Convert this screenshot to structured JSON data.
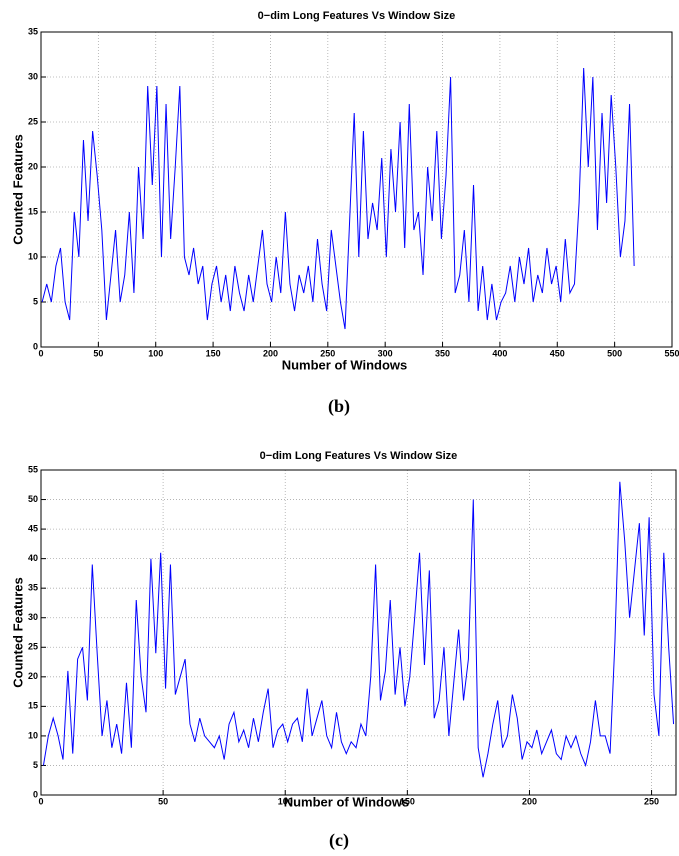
{
  "chart_data": [
    {
      "type": "line",
      "title": "0−dim Long Features Vs Window Size",
      "xlabel": "Number of Windows",
      "ylabel": "Counted Features",
      "caption": "(b)",
      "xlim": [
        0,
        550
      ],
      "ylim": [
        0,
        35
      ],
      "xticks": [
        0,
        50,
        100,
        150,
        200,
        250,
        300,
        350,
        400,
        450,
        500,
        550
      ],
      "yticks": [
        0,
        5,
        10,
        15,
        20,
        25,
        30,
        35
      ],
      "grid": true,
      "color": "#0000ff",
      "x": [
        1,
        5,
        9,
        13,
        17,
        21,
        25,
        29,
        33,
        37,
        41,
        45,
        49,
        53,
        57,
        61,
        65,
        69,
        73,
        77,
        81,
        85,
        89,
        93,
        97,
        101,
        105,
        109,
        113,
        117,
        121,
        125,
        129,
        133,
        137,
        141,
        145,
        149,
        153,
        157,
        161,
        165,
        169,
        173,
        177,
        181,
        185,
        189,
        193,
        197,
        201,
        205,
        209,
        213,
        217,
        221,
        225,
        229,
        233,
        237,
        241,
        245,
        249,
        253,
        257,
        261,
        265,
        269,
        273,
        277,
        281,
        285,
        289,
        293,
        297,
        301,
        305,
        309,
        313,
        317,
        321,
        325,
        329,
        333,
        337,
        341,
        345,
        349,
        353,
        357,
        361,
        365,
        369,
        373,
        377,
        381,
        385,
        389,
        393,
        397,
        401,
        405,
        409,
        413,
        417,
        421,
        425,
        429,
        433,
        437,
        441,
        445,
        449,
        453,
        457,
        461,
        465,
        469,
        473,
        477,
        481,
        485,
        489,
        493,
        497,
        501,
        505,
        509,
        513,
        517
      ],
      "values": [
        5,
        7,
        5,
        9,
        11,
        5,
        3,
        15,
        10,
        23,
        14,
        24,
        19,
        13,
        3,
        8,
        13,
        5,
        8,
        15,
        6,
        20,
        12,
        29,
        18,
        29,
        10,
        27,
        12,
        20,
        29,
        10,
        8,
        11,
        7,
        9,
        3,
        7,
        9,
        5,
        8,
        4,
        9,
        6,
        4,
        8,
        5,
        9,
        13,
        7,
        5,
        10,
        6,
        15,
        7,
        4,
        8,
        6,
        9,
        5,
        12,
        7,
        4,
        13,
        9,
        5,
        2,
        14,
        26,
        10,
        24,
        12,
        16,
        13,
        21,
        10,
        22,
        15,
        25,
        11,
        27,
        13,
        15,
        8,
        20,
        14,
        24,
        12,
        19,
        30,
        6,
        8,
        13,
        5,
        18,
        4,
        9,
        3,
        7,
        3,
        5,
        6,
        9,
        5,
        10,
        7,
        11,
        5,
        8,
        6,
        11,
        7,
        9,
        5,
        12,
        6,
        7,
        16,
        31,
        20,
        30,
        13,
        26,
        16,
        28,
        20,
        10,
        14,
        27,
        9
      ]
    },
    {
      "type": "line",
      "title": "0−dim Long Features Vs Window Size",
      "xlabel": "Number of Windows",
      "ylabel": "Counted Features",
      "caption": "(c)",
      "xlim": [
        0,
        260
      ],
      "ylim": [
        0,
        55
      ],
      "xticks": [
        0,
        50,
        100,
        150,
        200,
        250
      ],
      "yticks": [
        0,
        5,
        10,
        15,
        20,
        25,
        30,
        35,
        40,
        45,
        50,
        55
      ],
      "grid": true,
      "color": "#0000ff",
      "x": [
        1,
        3,
        5,
        7,
        9,
        11,
        13,
        15,
        17,
        19,
        21,
        23,
        25,
        27,
        29,
        31,
        33,
        35,
        37,
        39,
        41,
        43,
        45,
        47,
        49,
        51,
        53,
        55,
        57,
        59,
        61,
        63,
        65,
        67,
        69,
        71,
        73,
        75,
        77,
        79,
        81,
        83,
        85,
        87,
        89,
        91,
        93,
        95,
        97,
        99,
        101,
        103,
        105,
        107,
        109,
        111,
        113,
        115,
        117,
        119,
        121,
        123,
        125,
        127,
        129,
        131,
        133,
        135,
        137,
        139,
        141,
        143,
        145,
        147,
        149,
        151,
        153,
        155,
        157,
        159,
        161,
        163,
        165,
        167,
        169,
        171,
        173,
        175,
        177,
        179,
        181,
        183,
        185,
        187,
        189,
        191,
        193,
        195,
        197,
        199,
        201,
        203,
        205,
        207,
        209,
        211,
        213,
        215,
        217,
        219,
        221,
        223,
        225,
        227,
        229,
        231,
        233,
        235,
        237,
        239,
        241,
        243,
        245,
        247,
        249,
        251,
        253,
        255,
        257,
        259
      ],
      "values": [
        5,
        10,
        13,
        10,
        6,
        21,
        7,
        23,
        25,
        16,
        39,
        24,
        10,
        16,
        8,
        12,
        7,
        19,
        8,
        33,
        20,
        14,
        40,
        24,
        41,
        18,
        39,
        17,
        20,
        23,
        12,
        9,
        13,
        10,
        9,
        8,
        10,
        6,
        12,
        14,
        9,
        11,
        8,
        13,
        9,
        14,
        18,
        8,
        11,
        12,
        9,
        12,
        13,
        9,
        18,
        10,
        13,
        16,
        10,
        8,
        14,
        9,
        7,
        9,
        8,
        12,
        10,
        20,
        39,
        16,
        21,
        33,
        17,
        25,
        15,
        20,
        30,
        41,
        22,
        38,
        13,
        16,
        25,
        10,
        19,
        28,
        16,
        23,
        50,
        8,
        3,
        7,
        12,
        16,
        8,
        10,
        17,
        13,
        6,
        9,
        8,
        11,
        7,
        9,
        11,
        7,
        6,
        10,
        8,
        10,
        7,
        5,
        9,
        16,
        10,
        10,
        7,
        26,
        53,
        43,
        30,
        38,
        46,
        27,
        47,
        17,
        10,
        41,
        25,
        12
      ]
    }
  ]
}
